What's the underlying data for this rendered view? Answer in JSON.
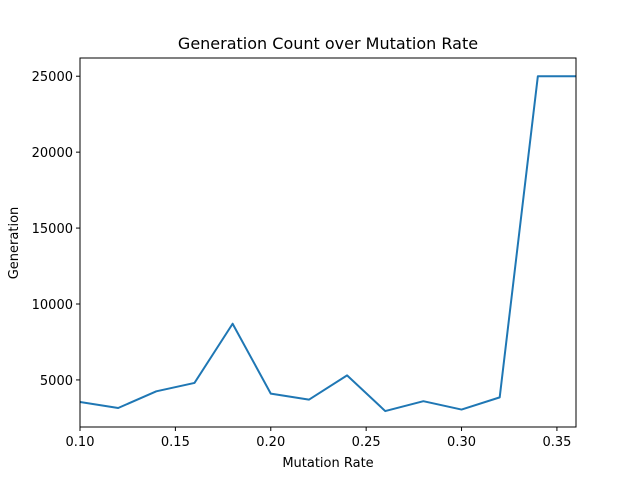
{
  "chart_data": {
    "type": "line",
    "title": "Generation Count over Mutation Rate",
    "xlabel": "Mutation Rate",
    "ylabel": "Generation",
    "xlim": [
      0.1,
      0.36
    ],
    "ylim": [
      1900,
      26200
    ],
    "xticks": [
      0.1,
      0.15,
      0.2,
      0.25,
      0.3,
      0.35
    ],
    "xtick_labels": [
      "0.10",
      "0.15",
      "0.20",
      "0.25",
      "0.30",
      "0.35"
    ],
    "yticks": [
      5000,
      10000,
      15000,
      20000,
      25000
    ],
    "ytick_labels": [
      "5000",
      "10000",
      "15000",
      "20000",
      "25000"
    ],
    "grid": false,
    "series": [
      {
        "color": "#1f77b4",
        "x": [
          0.1,
          0.12,
          0.14,
          0.16,
          0.18,
          0.2,
          0.22,
          0.24,
          0.26,
          0.28,
          0.3,
          0.32,
          0.34,
          0.36
        ],
        "y": [
          3550,
          3150,
          4250,
          4800,
          8700,
          4100,
          3700,
          5300,
          2950,
          3600,
          3050,
          3850,
          25000,
          25000
        ]
      }
    ]
  }
}
